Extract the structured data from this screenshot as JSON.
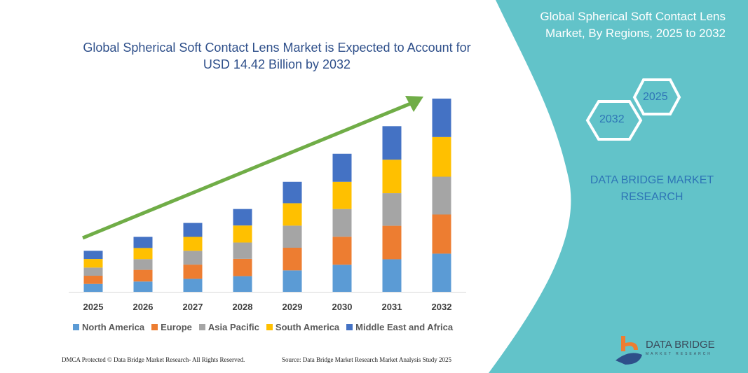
{
  "title": "Global Spherical Soft Contact Lens Market is Expected to Account for USD 14.42 Billion by 2032",
  "side_panel": {
    "title": "Global Spherical Soft Contact Lens Market, By Regions, 2025 to 2032",
    "hex_left": "2032",
    "hex_right": "2025",
    "brand_text": "DATA BRIDGE MARKET RESEARCH",
    "logo_text": "DATA BRIDGE",
    "logo_subtext": "MARKET RESEARCH",
    "panel_color": "#62c3c9"
  },
  "footer": {
    "left": "DMCA Protected © Data Bridge Market Research- All Rights Reserved.",
    "right": "Source: Data Bridge Market Research Market Analysis Study 2025"
  },
  "chart_data": {
    "type": "bar",
    "stacked": true,
    "categories": [
      "2025",
      "2026",
      "2027",
      "2028",
      "2029",
      "2030",
      "2031",
      "2032"
    ],
    "series": [
      {
        "name": "North America",
        "color": "#5b9bd5",
        "values": [
          0.59,
          0.77,
          0.97,
          1.17,
          1.6,
          2.02,
          2.43,
          2.85
        ]
      },
      {
        "name": "Europe",
        "color": "#ed7d31",
        "values": [
          0.61,
          0.87,
          1.06,
          1.29,
          1.69,
          2.09,
          2.5,
          2.92
        ]
      },
      {
        "name": "Asia Pacific",
        "color": "#a5a5a5",
        "values": [
          0.61,
          0.8,
          1.03,
          1.22,
          1.65,
          2.07,
          2.43,
          2.82
        ]
      },
      {
        "name": "South America",
        "color": "#ffc000",
        "values": [
          0.64,
          0.83,
          1.04,
          1.27,
          1.67,
          2.03,
          2.5,
          2.96
        ]
      },
      {
        "name": "Middle East and Africa",
        "color": "#4472c4",
        "values": [
          0.61,
          0.83,
          1.04,
          1.23,
          1.6,
          2.09,
          2.5,
          2.87
        ]
      }
    ],
    "trend_arrow_color": "#70ad47",
    "legend_position": "bottom",
    "grid": false,
    "y_axis_shown": false
  }
}
